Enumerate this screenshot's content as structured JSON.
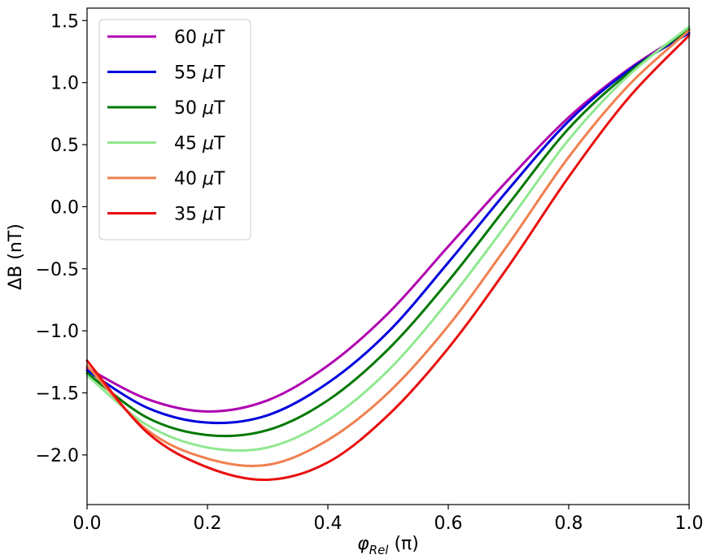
{
  "chart_data": {
    "type": "line",
    "title": "",
    "xlabel": "φ_Rel (π)",
    "xlabel_main": "φ",
    "xlabel_sub": "Rel",
    "xlabel_unit": " (π)",
    "ylabel": "ΔB (nT)",
    "xlim": [
      0.0,
      1.0
    ],
    "ylim": [
      -2.4,
      1.6
    ],
    "x_ticks": [
      0.0,
      0.2,
      0.4,
      0.6,
      0.8,
      1.0
    ],
    "x_tick_labels": [
      "0.0",
      "0.2",
      "0.4",
      "0.6",
      "0.8",
      "1.0"
    ],
    "y_ticks": [
      1.5,
      1.0,
      0.5,
      0.0,
      -0.5,
      -1.0,
      -1.5,
      -2.0
    ],
    "y_tick_labels": [
      "1.5",
      "1.0",
      "0.5",
      "0.0",
      "−0.5",
      "−1.0",
      "−1.5",
      "−2.0"
    ],
    "grid": false,
    "legend_position": "top-left",
    "series": [
      {
        "name": "60 μT",
        "label_num": "60",
        "label_unit": "μT",
        "color": "#b000b0",
        "x": [
          0.0,
          0.1,
          0.2,
          0.3,
          0.4,
          0.5,
          0.6,
          0.7,
          0.8,
          0.9,
          1.0
        ],
        "y": [
          -1.3,
          -1.55,
          -1.65,
          -1.56,
          -1.28,
          -0.86,
          -0.32,
          0.22,
          0.72,
          1.11,
          1.42
        ]
      },
      {
        "name": "55 μT",
        "label_num": "55",
        "label_unit": "μT",
        "color": "#0000dd",
        "x": [
          0.0,
          0.1,
          0.2,
          0.3,
          0.4,
          0.5,
          0.6,
          0.7,
          0.8,
          0.9,
          1.0
        ],
        "y": [
          -1.32,
          -1.62,
          -1.74,
          -1.68,
          -1.42,
          -1.01,
          -0.45,
          0.14,
          0.69,
          1.1,
          1.4
        ]
      },
      {
        "name": "50 μT",
        "label_num": "50",
        "label_unit": "μT",
        "color": "#007800",
        "x": [
          0.0,
          0.1,
          0.2,
          0.3,
          0.4,
          0.5,
          0.6,
          0.7,
          0.8,
          0.9,
          1.0
        ],
        "y": [
          -1.34,
          -1.7,
          -1.84,
          -1.8,
          -1.56,
          -1.15,
          -0.6,
          0.02,
          0.63,
          1.08,
          1.43
        ]
      },
      {
        "name": "45 μT",
        "label_num": "45",
        "label_unit": "μT",
        "color": "#90e890",
        "x": [
          0.0,
          0.1,
          0.2,
          0.3,
          0.4,
          0.5,
          0.6,
          0.7,
          0.8,
          0.9,
          1.0
        ],
        "y": [
          -1.36,
          -1.76,
          -1.94,
          -1.94,
          -1.72,
          -1.32,
          -0.76,
          -0.12,
          0.54,
          1.06,
          1.45
        ]
      },
      {
        "name": "40 μT",
        "label_num": "40",
        "label_unit": "μT",
        "color": "#f08050",
        "x": [
          0.0,
          0.1,
          0.2,
          0.3,
          0.4,
          0.5,
          0.6,
          0.7,
          0.8,
          0.9,
          1.0
        ],
        "y": [
          -1.28,
          -1.8,
          -2.03,
          -2.08,
          -1.88,
          -1.5,
          -0.96,
          -0.3,
          0.4,
          0.98,
          1.42
        ]
      },
      {
        "name": "35 μT",
        "label_num": "35",
        "label_unit": "μT",
        "color": "#e81010",
        "x": [
          0.0,
          0.1,
          0.2,
          0.3,
          0.4,
          0.5,
          0.6,
          0.7,
          0.8,
          0.9,
          1.0
        ],
        "y": [
          -1.24,
          -1.82,
          -2.1,
          -2.2,
          -2.06,
          -1.68,
          -1.14,
          -0.48,
          0.24,
          0.88,
          1.38
        ]
      }
    ]
  }
}
